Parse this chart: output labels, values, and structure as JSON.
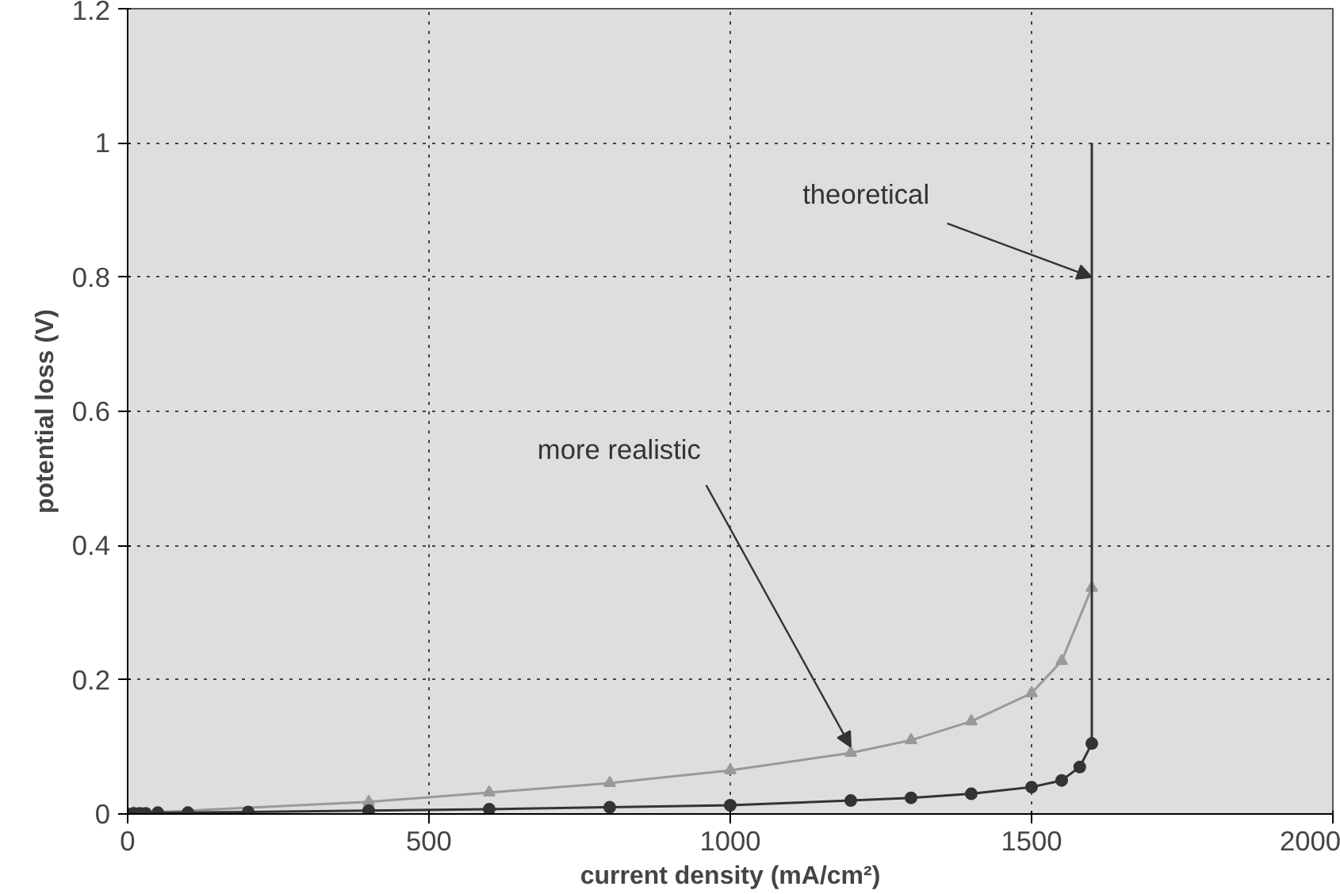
{
  "chart_data": {
    "type": "line",
    "xlabel": "current density (mA/cm²)",
    "ylabel": "potential loss (V)",
    "xlim": [
      0,
      2000
    ],
    "ylim": [
      0,
      1.2
    ],
    "xticks": [
      0,
      500,
      1000,
      1500,
      2000
    ],
    "yticks": [
      0,
      0.2,
      0.4,
      0.6,
      0.8,
      1,
      1.2
    ],
    "grid": true,
    "series": [
      {
        "color": "#999999",
        "marker": "triangle",
        "x": [
          0,
          10,
          400,
          600,
          800,
          1000,
          1200,
          1300,
          1400,
          1500,
          1550,
          1600
        ],
        "values": [
          0,
          0.001,
          0.018,
          0.032,
          0.046,
          0.065,
          0.091,
          0.11,
          0.138,
          0.18,
          0.228,
          0.337
        ]
      },
      {
        "color": "#333333",
        "marker": "circle",
        "x": [
          0,
          10,
          20,
          30,
          50,
          100,
          200,
          400,
          600,
          800,
          1000,
          1200,
          1300,
          1400,
          1500,
          1550,
          1580,
          1600
        ],
        "values": [
          0,
          0.001,
          0.001,
          0.001,
          0.002,
          0.002,
          0.003,
          0.005,
          0.007,
          0.01,
          0.013,
          0.02,
          0.024,
          0.03,
          0.04,
          0.05,
          0.07,
          0.105
        ]
      },
      {
        "color": "#333333",
        "marker": "none",
        "x": [
          1600,
          1600
        ],
        "values": [
          0.105,
          1
        ]
      }
    ],
    "annotations": [
      {
        "text": "theoretical",
        "x": 1600,
        "y": 0.8
      },
      {
        "text": "more realistic",
        "x": 1200,
        "y": 0.1
      }
    ]
  }
}
